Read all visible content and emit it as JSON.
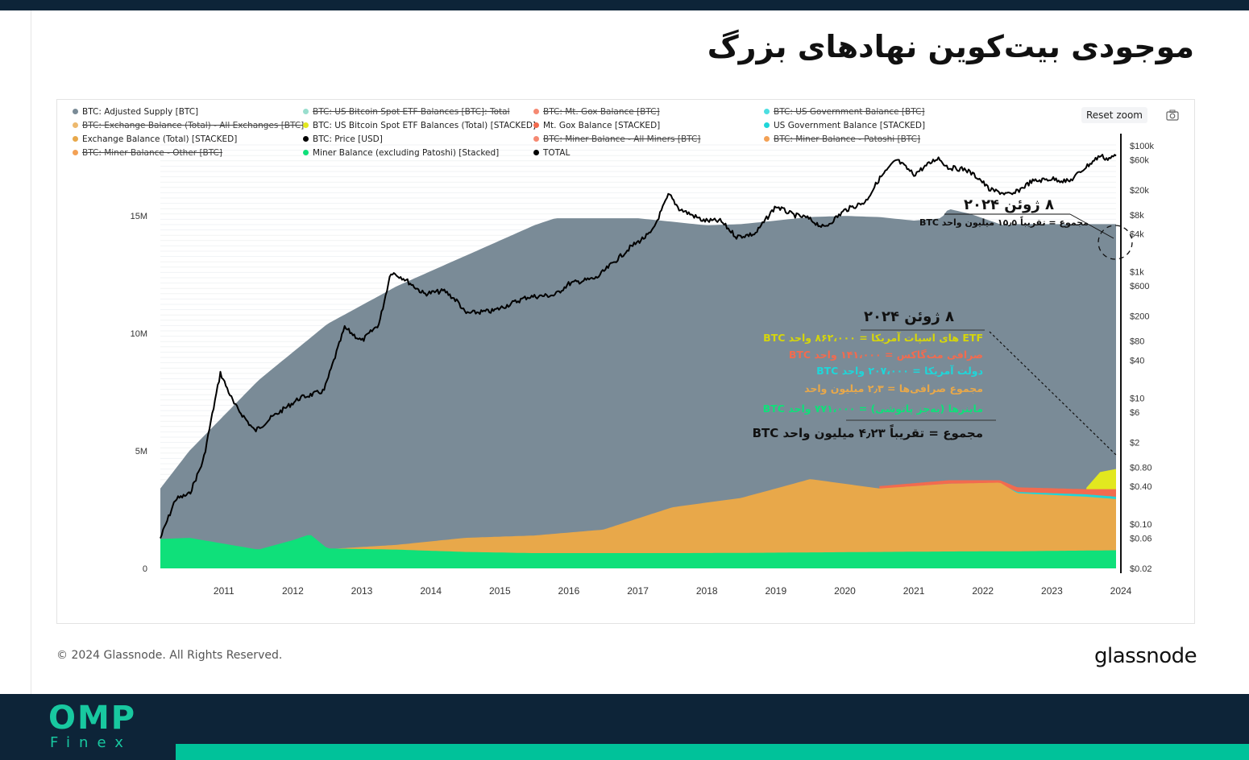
{
  "slide_title": "موجودی بیت‌کوین نهادهای بزرگ",
  "toolbar": {
    "reset_zoom": "Reset zoom",
    "camera_icon": "camera-icon"
  },
  "footer": {
    "copyright": "© 2024 Glassnode. All Rights Reserved.",
    "logo": "glassnode"
  },
  "brand": {
    "name": "OMP",
    "sub": "Finex",
    "accent": "#00c29a",
    "dark": "#0d2438"
  },
  "legend": [
    {
      "label": "BTC: Adjusted Supply [BTC]",
      "color": "#7a8b97",
      "enabled": true
    },
    {
      "label": "BTC: US Bitcoin Spot ETF Balances [BTC]: Total",
      "color": "#7fd6c2",
      "enabled": false
    },
    {
      "label": "BTC: Mt. Gox Balance [BTC]",
      "color": "#f26b4f",
      "enabled": false
    },
    {
      "label": "BTC: US Government Balance [BTC]",
      "color": "#1fd6d9",
      "enabled": false
    },
    {
      "label": "BTC: Exchange Balance (Total) - All Exchanges [BTC]",
      "color": "#e8a84a",
      "enabled": false
    },
    {
      "label": "BTC: US Bitcoin Spot ETF Balances (Total) [STACKED]",
      "color": "#e2e81f",
      "enabled": true
    },
    {
      "label": "Mt. Gox Balance [STACKED]",
      "color": "#f26b4f",
      "enabled": true
    },
    {
      "label": "US Government Balance [STACKED]",
      "color": "#1fd6d9",
      "enabled": true
    },
    {
      "label": "Exchange Balance (Total) [STACKED]",
      "color": "#e8a84a",
      "enabled": true
    },
    {
      "label": "BTC: Price [USD]",
      "color": "#000000",
      "enabled": true
    },
    {
      "label": "BTC: Miner Balance - All Miners [BTC]",
      "color": "#f26b4f",
      "enabled": false
    },
    {
      "label": "BTC: Miner Balance - Patoshi [BTC]",
      "color": "#f08a2a",
      "enabled": false
    },
    {
      "label": "BTC: Miner Balance - Other [BTC]",
      "color": "#f08a2a",
      "enabled": false
    },
    {
      "label": "Miner Balance (excluding Patoshi) [Stacked]",
      "color": "#0fe07a",
      "enabled": true
    },
    {
      "label": "TOTAL",
      "color": "#000000",
      "enabled": true
    }
  ],
  "annotations": {
    "top_date": "۸ ژوئن ۲۰۲۴",
    "top_total": "مجموع = تقریباً ۱۵٫۵ میلیون واحد BTC",
    "mid_date": "۸ ژوئن ۲۰۲۴",
    "lines": [
      {
        "text": "ETF های اسپات آمریکا = ۸۶۲،۰۰۰ واحد BTC",
        "color": "#d6d60a"
      },
      {
        "text": "صرافی مت‌گاکس = ۱۴۱،۰۰۰ واحد BTC",
        "color": "#f26b4f"
      },
      {
        "text": "دولت آمریکا = ۲۰۷،۰۰۰ واحد BTC",
        "color": "#1fd6d9"
      },
      {
        "text": "مجموع صرافی‌ها = ۲٫۳ میلیون واحد",
        "color": "#e8a84a"
      },
      {
        "text": "ماینرها (به‌جز پاتوشی) = ۷۷۱،۰۰۰ واحد BTC",
        "color": "#0fe07a"
      }
    ],
    "total": "مجموع = تقریباً ۴٫۲۳ میلیون واحد BTC"
  },
  "chart_data": {
    "type": "area",
    "x_ticks": [
      "2011",
      "2012",
      "2013",
      "2014",
      "2015",
      "2016",
      "2017",
      "2018",
      "2019",
      "2020",
      "2021",
      "2022",
      "2023",
      "2024"
    ],
    "left_axis": {
      "ticks": [
        {
          "v": 0,
          "label": "0"
        },
        {
          "v": 5000000,
          "label": "5M"
        },
        {
          "v": 10000000,
          "label": "10M"
        },
        {
          "v": 15000000,
          "label": "15M"
        }
      ],
      "ylim": [
        0,
        18500000
      ]
    },
    "right_axis": {
      "scale": "log",
      "ticks": [
        "$100k",
        "$60k",
        "$20k",
        "$8k",
        "$4k",
        "$1k",
        "$600",
        "$200",
        "$80",
        "$40",
        "$10",
        "$6",
        "$2",
        "$0.80",
        "$0.40",
        "$0.10",
        "$0.06",
        "$0.02"
      ]
    },
    "series": [
      {
        "name": "Adjusted Supply",
        "color": "#7a8b97",
        "points": [
          [
            2010.58,
            3400000
          ],
          [
            2011.0,
            5000000
          ],
          [
            2012.0,
            8000000
          ],
          [
            2013.0,
            10400000
          ],
          [
            2014.0,
            12000000
          ],
          [
            2015.0,
            13300000
          ],
          [
            2016.0,
            14600000
          ],
          [
            2016.3,
            14900000
          ],
          [
            2017.0,
            14900000
          ],
          [
            2017.5,
            14900000
          ],
          [
            2018.0,
            14750000
          ],
          [
            2018.5,
            14600000
          ],
          [
            2019.0,
            14650000
          ],
          [
            2019.5,
            14800000
          ],
          [
            2020.0,
            14950000
          ],
          [
            2020.5,
            15000000
          ],
          [
            2021.0,
            14950000
          ],
          [
            2021.5,
            14800000
          ],
          [
            2021.9,
            14900000
          ],
          [
            2022.0,
            15300000
          ],
          [
            2022.3,
            15100000
          ],
          [
            2022.6,
            14800000
          ],
          [
            2022.8,
            14600000
          ],
          [
            2023.0,
            14650000
          ],
          [
            2023.5,
            14650000
          ],
          [
            2024.0,
            14650000
          ],
          [
            2024.43,
            14650000
          ]
        ]
      },
      {
        "name": "US Bitcoin Spot ETF Balances (Total) [STACKED]",
        "color": "#e2e81f",
        "points": [
          [
            2024.0,
            3430000
          ],
          [
            2024.2,
            4100000
          ],
          [
            2024.43,
            4230000
          ]
        ]
      },
      {
        "name": "Mt. Gox Balance [STACKED]",
        "color": "#f26b4f",
        "points": [
          [
            2021.0,
            3500000
          ],
          [
            2022.0,
            3750000
          ],
          [
            2022.75,
            3750000
          ],
          [
            2023.0,
            3450000
          ],
          [
            2024.0,
            3370000
          ],
          [
            2024.43,
            3370000
          ]
        ]
      },
      {
        "name": "US Government Balance [STACKED]",
        "color": "#1fd6d9",
        "points": [
          [
            2021.0,
            3380000
          ],
          [
            2022.0,
            3600000
          ],
          [
            2022.75,
            3600000
          ],
          [
            2023.0,
            3250000
          ],
          [
            2024.0,
            3150000
          ],
          [
            2024.43,
            3050000
          ]
        ]
      },
      {
        "name": "Exchange Balance (Total) [STACKED]",
        "color": "#e8a84a",
        "points": [
          [
            2013.0,
            820000
          ],
          [
            2014.0,
            1000000
          ],
          [
            2015.0,
            1300000
          ],
          [
            2016.0,
            1400000
          ],
          [
            2017.0,
            1650000
          ],
          [
            2018.0,
            2600000
          ],
          [
            2019.0,
            3000000
          ],
          [
            2020.0,
            3800000
          ],
          [
            2021.0,
            3400000
          ],
          [
            2022.0,
            3600000
          ],
          [
            2022.75,
            3650000
          ],
          [
            2023.0,
            3200000
          ],
          [
            2024.0,
            3050000
          ],
          [
            2024.43,
            2950000
          ]
        ]
      },
      {
        "name": "Miner Balance (excluding Patoshi) [Stacked]",
        "color": "#0fe07a",
        "points": [
          [
            2010.58,
            1250000
          ],
          [
            2011.0,
            1300000
          ],
          [
            2012.0,
            800000
          ],
          [
            2012.5,
            1200000
          ],
          [
            2012.75,
            1450000
          ],
          [
            2013.0,
            850000
          ],
          [
            2014.0,
            800000
          ],
          [
            2015.0,
            700000
          ],
          [
            2016.0,
            650000
          ],
          [
            2017.0,
            650000
          ],
          [
            2018.0,
            650000
          ],
          [
            2019.0,
            660000
          ],
          [
            2020.0,
            680000
          ],
          [
            2021.0,
            700000
          ],
          [
            2022.0,
            720000
          ],
          [
            2023.0,
            730000
          ],
          [
            2024.0,
            760000
          ],
          [
            2024.43,
            771000
          ]
        ]
      },
      {
        "name": "BTC: Price [USD]",
        "color": "#000000",
        "axis": "right",
        "points": [
          [
            2010.58,
            0.06
          ],
          [
            2010.8,
            0.25
          ],
          [
            2011.0,
            0.3
          ],
          [
            2011.2,
            1
          ],
          [
            2011.45,
            25
          ],
          [
            2011.65,
            8
          ],
          [
            2011.95,
            3
          ],
          [
            2012.2,
            5
          ],
          [
            2012.6,
            10
          ],
          [
            2012.95,
            13
          ],
          [
            2013.25,
            130
          ],
          [
            2013.5,
            80
          ],
          [
            2013.75,
            150
          ],
          [
            2013.92,
            1000
          ],
          [
            2014.1,
            800
          ],
          [
            2014.4,
            450
          ],
          [
            2014.7,
            500
          ],
          [
            2014.9,
            330
          ],
          [
            2015.0,
            220
          ],
          [
            2015.4,
            240
          ],
          [
            2015.9,
            400
          ],
          [
            2016.3,
            430
          ],
          [
            2016.5,
            650
          ],
          [
            2016.9,
            800
          ],
          [
            2017.4,
            2500
          ],
          [
            2017.7,
            4200
          ],
          [
            2017.95,
            17000
          ],
          [
            2018.1,
            10000
          ],
          [
            2018.45,
            6500
          ],
          [
            2018.7,
            6400
          ],
          [
            2018.93,
            3600
          ],
          [
            2019.2,
            4000
          ],
          [
            2019.5,
            11000
          ],
          [
            2019.75,
            8000
          ],
          [
            2019.95,
            7200
          ],
          [
            2020.2,
            5000
          ],
          [
            2020.5,
            9500
          ],
          [
            2020.8,
            13000
          ],
          [
            2021.0,
            30000
          ],
          [
            2021.25,
            60000
          ],
          [
            2021.5,
            35000
          ],
          [
            2021.85,
            65000
          ],
          [
            2022.0,
            45000
          ],
          [
            2022.25,
            42000
          ],
          [
            2022.45,
            30000
          ],
          [
            2022.6,
            20000
          ],
          [
            2022.92,
            16500
          ],
          [
            2023.2,
            27000
          ],
          [
            2023.5,
            30000
          ],
          [
            2023.75,
            27000
          ],
          [
            2023.95,
            42000
          ],
          [
            2024.2,
            70000
          ],
          [
            2024.3,
            62000
          ],
          [
            2024.43,
            69000
          ]
        ]
      }
    ]
  }
}
